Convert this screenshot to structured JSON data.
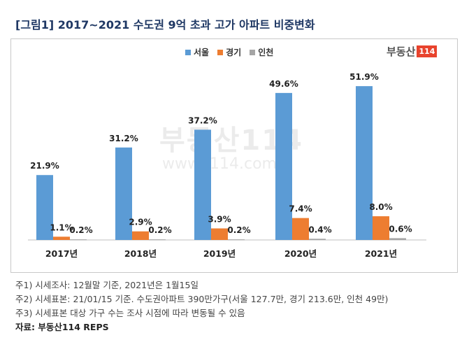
{
  "title": "[그림1] 2017~2021 수도권 9억 초과 고가 아파트 비중변화",
  "brand": {
    "text": "부동산",
    "box": "114"
  },
  "watermark": {
    "logo": "부동산114",
    "url": "www.r114.com"
  },
  "colors": {
    "seoul": "#5b9bd5",
    "gyeonggi": "#ed7d31",
    "incheon": "#a5a5a5",
    "title": "#1f3864"
  },
  "chart_data": {
    "type": "bar",
    "categories": [
      "2017년",
      "2018년",
      "2019년",
      "2020년",
      "2021년"
    ],
    "series": [
      {
        "name": "서울",
        "values": [
          21.9,
          31.2,
          37.2,
          49.6,
          51.9
        ],
        "labels": [
          "21.9%",
          "31.2%",
          "37.2%",
          "49.6%",
          "51.9%"
        ]
      },
      {
        "name": "경기",
        "values": [
          1.1,
          2.9,
          3.9,
          7.4,
          8.0
        ],
        "labels": [
          "1.1%",
          "2.9%",
          "3.9%",
          "7.4%",
          "8.0%"
        ]
      },
      {
        "name": "인천",
        "values": [
          0.2,
          0.2,
          0.2,
          0.4,
          0.6
        ],
        "labels": [
          "0.2%",
          "0.2%",
          "0.2%",
          "0.4%",
          "0.6%"
        ]
      }
    ],
    "ylim": [
      0,
      55
    ],
    "legend": "top-center",
    "grid": false
  },
  "notes": [
    "주1) 시세조사: 12월말 기준, 2021년은 1월15일",
    "주2) 시세표본: 21/01/15 기준. 수도권아파트 390만가구(서울 127.7만, 경기 213.6만, 인천 49만)",
    "주3) 시세표본 대상 가구 수는 조사 시점에 따라 변동될 수 있음"
  ],
  "source": "자료: 부동산114 REPS"
}
